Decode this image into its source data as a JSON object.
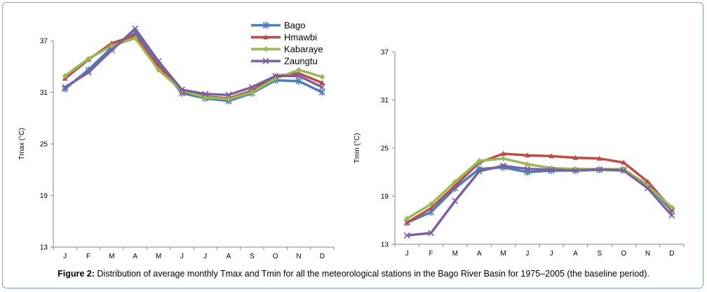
{
  "caption": {
    "label": "Figure 2:",
    "text": " Distribution of average monthly Tmax and Tmin for all the meteorological stations in the Bago River Basin for 1975–2005 (the baseline period)."
  },
  "legend": [
    {
      "name": "Bago",
      "color": "#4a7ebb",
      "marker": "star"
    },
    {
      "name": "Hmawbi",
      "color": "#be4b48",
      "marker": "triangle"
    },
    {
      "name": "Kabaraye",
      "color": "#98b954",
      "marker": "diamond"
    },
    {
      "name": "Zaungtu",
      "color": "#7d5fa0",
      "marker": "x"
    }
  ],
  "chart_data": [
    {
      "type": "line",
      "ylabel": "Tmax (°C)",
      "xlabel": "",
      "ylim": [
        13,
        37
      ],
      "yticks": [
        13,
        19,
        25,
        31,
        37
      ],
      "categories": [
        "J",
        "F",
        "M",
        "A",
        "M",
        "J",
        "J",
        "A",
        "S",
        "O",
        "N",
        "D"
      ],
      "series": [
        {
          "name": "Bago",
          "values": [
            31.4,
            33.6,
            36.2,
            37.9,
            34.2,
            30.9,
            30.3,
            30.0,
            30.9,
            32.4,
            32.3,
            31.0
          ]
        },
        {
          "name": "Hmawbi",
          "values": [
            32.6,
            34.8,
            36.7,
            37.6,
            34.0,
            31.1,
            30.5,
            30.3,
            31.2,
            32.9,
            33.2,
            32.1
          ]
        },
        {
          "name": "Kabaraye",
          "values": [
            32.9,
            34.9,
            36.4,
            37.3,
            33.6,
            31.2,
            30.4,
            30.2,
            31.0,
            32.6,
            33.6,
            32.8
          ]
        },
        {
          "name": "Zaungtu",
          "values": [
            31.6,
            33.3,
            35.9,
            38.4,
            34.6,
            31.3,
            30.8,
            30.7,
            31.6,
            32.9,
            32.9,
            31.6
          ]
        }
      ]
    },
    {
      "type": "line",
      "ylabel": "Tmin (°C)",
      "xlabel": "",
      "ylim": [
        13,
        37
      ],
      "yticks": [
        13,
        19,
        25,
        31,
        37
      ],
      "categories": [
        "J",
        "F",
        "M",
        "A",
        "M",
        "J",
        "J",
        "A",
        "S",
        "O",
        "N",
        "D"
      ],
      "series": [
        {
          "name": "Bago",
          "values": [
            15.7,
            17.0,
            20.0,
            22.4,
            22.6,
            22.0,
            22.2,
            22.2,
            22.3,
            22.3,
            20.4,
            17.2
          ]
        },
        {
          "name": "Hmawbi",
          "values": [
            15.7,
            17.5,
            20.3,
            23.2,
            24.3,
            24.1,
            24.0,
            23.8,
            23.7,
            23.2,
            20.8,
            17.4
          ]
        },
        {
          "name": "Kabaraye",
          "values": [
            16.2,
            18.0,
            20.8,
            23.4,
            23.7,
            23.0,
            22.5,
            22.4,
            22.4,
            22.4,
            20.3,
            17.6
          ]
        },
        {
          "name": "Zaungtu",
          "values": [
            14.1,
            14.4,
            18.4,
            22.1,
            22.8,
            22.4,
            22.3,
            22.2,
            22.3,
            22.2,
            20.0,
            16.6
          ]
        }
      ]
    }
  ]
}
